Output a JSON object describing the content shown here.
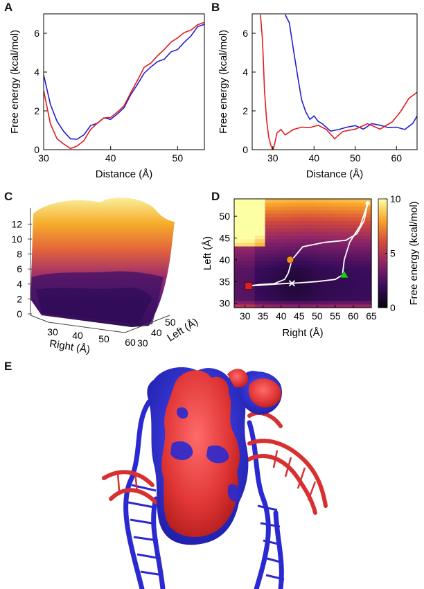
{
  "panel_letters": [
    "A",
    "B",
    "C",
    "D",
    "E"
  ],
  "colors": {
    "red": "#e41a1c",
    "blue": "#1f1fd0",
    "white": "#ffffff"
  },
  "chart_data": [
    {
      "panel": "A",
      "type": "line",
      "xlabel": "Distance (Å)",
      "ylabel": "Free energy (kcal/mol)",
      "xlim": [
        30,
        54
      ],
      "ylim": [
        0,
        7
      ],
      "xticks": [
        30,
        40,
        50
      ],
      "yticks": [
        0,
        2,
        4,
        6
      ],
      "series": [
        {
          "color": "#1f1fd0",
          "x": [
            30,
            31,
            32,
            33,
            34,
            35,
            36,
            37,
            38,
            39,
            40,
            41,
            42,
            43,
            44,
            45,
            46,
            47,
            48,
            49,
            50,
            51,
            52,
            53,
            54
          ],
          "y": [
            3.9,
            2.3,
            1.5,
            0.9,
            0.6,
            0.5,
            0.8,
            1.2,
            1.4,
            1.6,
            1.6,
            1.8,
            2.2,
            2.8,
            3.4,
            3.9,
            4.3,
            4.5,
            4.7,
            5.0,
            5.2,
            5.5,
            5.9,
            6.3,
            6.5
          ]
        },
        {
          "color": "#e41a1c",
          "x": [
            30,
            31,
            32,
            33,
            34,
            35,
            36,
            37,
            38,
            39,
            40,
            41,
            42,
            43,
            44,
            45,
            46,
            47,
            48,
            49,
            50,
            51,
            52,
            53,
            54
          ],
          "y": [
            3.1,
            1.3,
            0.6,
            0.25,
            0.1,
            0.15,
            0.5,
            1.0,
            1.4,
            1.6,
            1.7,
            1.9,
            2.3,
            2.9,
            3.6,
            4.2,
            4.5,
            4.8,
            5.2,
            5.5,
            5.8,
            6.0,
            6.2,
            6.4,
            6.6
          ]
        }
      ]
    },
    {
      "panel": "B",
      "type": "line",
      "xlabel": "Distance (Å)",
      "ylabel": "Free energy (kcal/mol)",
      "xlim": [
        25,
        65
      ],
      "ylim": [
        0,
        7
      ],
      "xticks": [
        30,
        40,
        50,
        60
      ],
      "yticks": [
        0,
        2,
        4,
        6
      ],
      "series": [
        {
          "color": "#1f1fd0",
          "x": [
            33,
            34,
            35,
            36,
            37,
            38,
            39,
            40,
            41,
            42,
            44,
            46,
            48,
            50,
            52,
            54,
            56,
            58,
            60,
            62,
            64,
            65
          ],
          "y": [
            7.0,
            6.5,
            5.2,
            3.8,
            2.6,
            1.9,
            1.6,
            1.7,
            1.5,
            1.3,
            1.0,
            1.0,
            1.2,
            1.2,
            1.1,
            1.3,
            1.3,
            1.1,
            1.2,
            1.0,
            1.4,
            1.7
          ]
        },
        {
          "color": "#e41a1c",
          "x": [
            27,
            27.5,
            28,
            28.5,
            29,
            29.5,
            30,
            30.5,
            31,
            32,
            33,
            35,
            37,
            39,
            41,
            43,
            45,
            47,
            50,
            53,
            56,
            59,
            61,
            63,
            65
          ],
          "y": [
            7.0,
            5.6,
            3.0,
            1.5,
            0.7,
            0.2,
            0.0,
            0.3,
            0.9,
            1.0,
            0.8,
            1.0,
            1.2,
            1.1,
            1.3,
            1.0,
            0.6,
            0.9,
            1.1,
            1.3,
            1.1,
            1.4,
            2.0,
            2.6,
            3.0
          ]
        }
      ]
    },
    {
      "panel": "C",
      "type": "surface",
      "xlabel": "Right (Å)",
      "ylabel": "Left (Å)",
      "xticks": [
        30,
        40,
        50,
        60
      ],
      "yticks": [
        30,
        40,
        50
      ],
      "zticks": [
        0,
        2,
        4,
        6,
        8,
        10,
        12
      ],
      "zlim": [
        0,
        12
      ]
    },
    {
      "panel": "D",
      "type": "heatmap",
      "xlabel": "Right (Å)",
      "ylabel": "Left (Å)",
      "colorbar_label": "Free energy (kcal/mol)",
      "xlim": [
        27,
        65
      ],
      "ylim": [
        29,
        54
      ],
      "xticks": [
        30,
        35,
        40,
        45,
        50,
        55,
        60,
        65
      ],
      "yticks": [
        30,
        35,
        40,
        45,
        50
      ],
      "colorbar_ticks": [
        0,
        5,
        10
      ],
      "clim": [
        0,
        10
      ],
      "paths": [
        {
          "x": [
            64,
            63,
            61,
            58,
            52,
            46,
            43,
            42,
            41,
            38,
            34,
            31
          ],
          "y": [
            53,
            49,
            46,
            44.5,
            44,
            43,
            40,
            37,
            35.5,
            34.5,
            34.3,
            34
          ]
        },
        {
          "x": [
            64,
            62,
            59,
            57.5,
            57,
            55,
            50,
            45,
            40,
            35,
            31
          ],
          "y": [
            53,
            48,
            44,
            40,
            36.5,
            35.5,
            35,
            34.7,
            34.5,
            34.2,
            34
          ]
        }
      ],
      "markers": [
        {
          "shape": "square",
          "color": "#e02020",
          "x": 31,
          "y": 34
        },
        {
          "shape": "circle",
          "color": "#f09020",
          "x": 42.5,
          "y": 40
        },
        {
          "shape": "cross",
          "color": "#ffffff",
          "x": 43,
          "y": 34.6
        },
        {
          "shape": "triangle",
          "color": "#20d020",
          "x": 57.5,
          "y": 36.5
        },
        {
          "shape": "circle-small",
          "color": "#ffffff",
          "x": 64,
          "y": 53
        }
      ]
    }
  ],
  "molecule": {
    "colors": [
      "#e53a3a",
      "#2828d0"
    ]
  }
}
